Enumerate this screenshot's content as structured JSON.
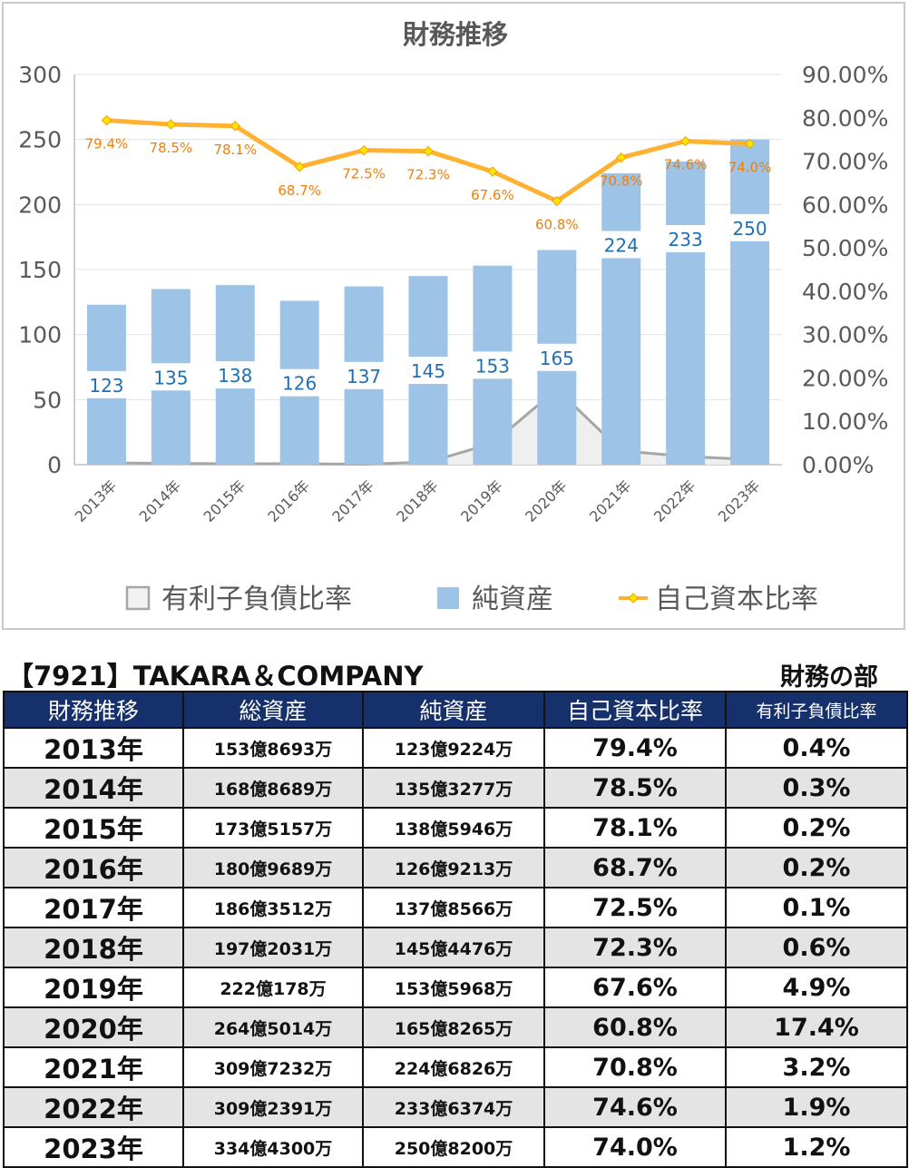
{
  "chart_data": {
    "type": "bar",
    "title": "財務推移",
    "categories": [
      "2013年",
      "2014年",
      "2015年",
      "2016年",
      "2017年",
      "2018年",
      "2019年",
      "2020年",
      "2021年",
      "2022年",
      "2023年"
    ],
    "series": [
      {
        "name": "有利子負債比率",
        "kind": "area",
        "axis": "right",
        "color": "#a6a6a6",
        "values": [
          0.4,
          0.3,
          0.2,
          0.2,
          0.1,
          0.6,
          4.9,
          17.4,
          3.2,
          1.9,
          1.2
        ]
      },
      {
        "name": "純資産",
        "kind": "bar",
        "axis": "left",
        "color": "#9dc3e6",
        "values": [
          123,
          135,
          138,
          126,
          137,
          145,
          153,
          165,
          224,
          233,
          250
        ],
        "labels": [
          "123",
          "135",
          "138",
          "126",
          "137",
          "145",
          "153",
          "165",
          "224",
          "233",
          "250"
        ]
      },
      {
        "name": "自己資本比率",
        "kind": "line",
        "axis": "right",
        "color": "#ffb232",
        "values": [
          79.4,
          78.5,
          78.1,
          68.7,
          72.5,
          72.3,
          67.6,
          60.8,
          70.8,
          74.6,
          74.0
        ],
        "labels": [
          "79.4%",
          "78.5%",
          "78.1%",
          "68.7%",
          "72.5%",
          "72.3%",
          "67.6%",
          "60.8%",
          "70.8%",
          "74.6%",
          "74.0%"
        ]
      }
    ],
    "y_left": {
      "min": 0,
      "max": 300,
      "ticks": [
        "0",
        "50",
        "100",
        "150",
        "200",
        "250",
        "300"
      ]
    },
    "y_right": {
      "min": 0,
      "max": 90,
      "ticks": [
        "0.00%",
        "10.00%",
        "20.00%",
        "30.00%",
        "40.00%",
        "50.00%",
        "60.00%",
        "70.00%",
        "80.00%",
        "90.00%"
      ]
    },
    "grid": true,
    "legend_position": "bottom"
  },
  "colors": {
    "header_bg": "#16306b",
    "row_alt": "#e4e4e4",
    "bar_label": "#1f6fb5",
    "line_label": "#f07f09",
    "axis_text": "#595959"
  },
  "table": {
    "company": "【7921】TAKARA＆COMPANY",
    "section": "財務の部",
    "headers": [
      "財務推移",
      "総資産",
      "純資産",
      "自己資本比率",
      "有利子負債比率"
    ],
    "rows": [
      [
        "2013年",
        "153億8693万",
        "123億9224万",
        "79.4%",
        "0.4%"
      ],
      [
        "2014年",
        "168億8689万",
        "135億3277万",
        "78.5%",
        "0.3%"
      ],
      [
        "2015年",
        "173億5157万",
        "138億5946万",
        "78.1%",
        "0.2%"
      ],
      [
        "2016年",
        "180億9689万",
        "126億9213万",
        "68.7%",
        "0.2%"
      ],
      [
        "2017年",
        "186億3512万",
        "137億8566万",
        "72.5%",
        "0.1%"
      ],
      [
        "2018年",
        "197億2031万",
        "145億4476万",
        "72.3%",
        "0.6%"
      ],
      [
        "2019年",
        "222億178万",
        "153億5968万",
        "67.6%",
        "4.9%"
      ],
      [
        "2020年",
        "264億5014万",
        "165億8265万",
        "60.8%",
        "17.4%"
      ],
      [
        "2021年",
        "309億7232万",
        "224億6826万",
        "70.8%",
        "3.2%"
      ],
      [
        "2022年",
        "309億2391万",
        "233億6374万",
        "74.6%",
        "1.9%"
      ],
      [
        "2023年",
        "334億4300万",
        "250億8200万",
        "74.0%",
        "1.2%"
      ]
    ]
  }
}
